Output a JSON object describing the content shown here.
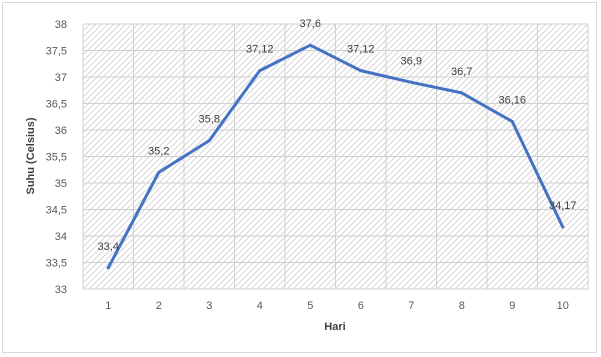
{
  "chart_data": {
    "type": "line",
    "title": "",
    "xlabel": "Hari",
    "ylabel": "Suhu (Celsius)",
    "categories": [
      "1",
      "2",
      "3",
      "4",
      "5",
      "6",
      "7",
      "8",
      "9",
      "10"
    ],
    "series": [
      {
        "values": [
          33.4,
          35.2,
          35.8,
          37.12,
          37.6,
          37.12,
          36.9,
          36.7,
          36.16,
          34.17
        ],
        "data_labels": [
          "33,4",
          "35,2",
          "35,8",
          "37,12",
          "37,6",
          "37,12",
          "36,9",
          "36,7",
          "36,16",
          "34,17"
        ],
        "color": "#4472c4"
      }
    ],
    "ylim": [
      33,
      38
    ],
    "y_ticks": [
      33,
      33.5,
      34,
      34.5,
      35,
      35.5,
      36,
      36.5,
      37,
      37.5,
      38
    ],
    "y_tick_labels": [
      "33",
      "33,5",
      "34",
      "34,5",
      "35",
      "35,5",
      "36",
      "36,5",
      "37",
      "37,5",
      "38"
    ],
    "grid": true,
    "plot_fill": "diagonal-hatch",
    "legend": "none"
  }
}
